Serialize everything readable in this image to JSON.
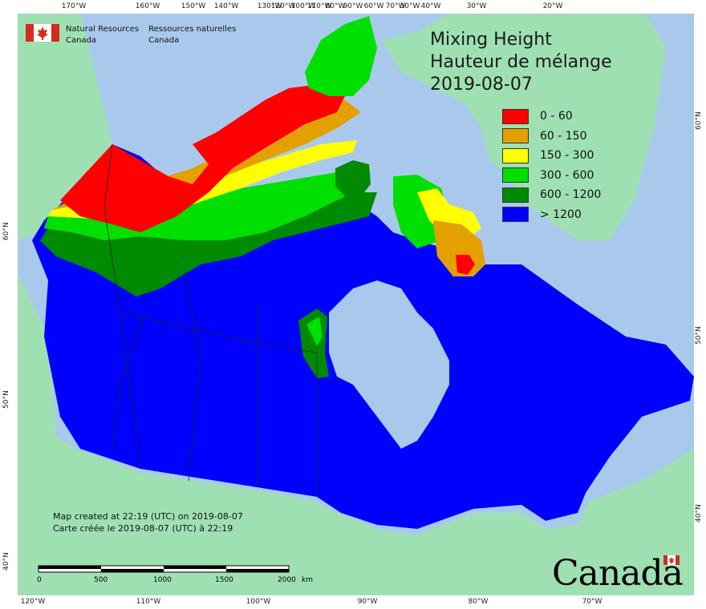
{
  "title": {
    "line1": "Mixing Height",
    "line2": "Hauteur de mélange",
    "date": "2019-08-07"
  },
  "legend": [
    {
      "label": "0 - 60",
      "color": "#ff0000"
    },
    {
      "label": "60 - 150",
      "color": "#e3a000"
    },
    {
      "label": "150 - 300",
      "color": "#ffff00"
    },
    {
      "label": "300 - 600",
      "color": "#00e000"
    },
    {
      "label": "600 - 1200",
      "color": "#008a00"
    },
    {
      "label": "> 1200",
      "color": "#0000ff"
    }
  ],
  "agency": {
    "english_line1": "Natural Resources",
    "english_line2": "Canada",
    "french_line1": "Ressources naturelles",
    "french_line2": "Canada"
  },
  "created": {
    "english": "Map created at 22:19 (UTC) on 2019-08-07",
    "french": "Carte créée le 2019-08-07 (UTC) à 22:19"
  },
  "scale": {
    "labels": [
      "0",
      "500",
      "1000",
      "1500",
      "2000"
    ],
    "unit": "km"
  },
  "wordmark": "Canada",
  "graticule": {
    "top": [
      "170°W",
      "160°W",
      "150°W",
      "140°W",
      "130°W",
      "120°W",
      "100°W",
      "110°W",
      "80°W",
      "90°W",
      "60°W",
      "70°W",
      "50°W",
      "40°W",
      "30°W",
      "20°W"
    ],
    "bottom": [
      "120°W",
      "110°W",
      "100°W",
      "90°W",
      "80°W",
      "70°W"
    ],
    "left": [
      "60°N",
      "50°N",
      "40°N"
    ],
    "right": [
      "60°N",
      "50°N",
      "40°N"
    ]
  },
  "colors": {
    "ocean": "#a9c9ec",
    "foreign_land": "#9ee0b2",
    "bay": "#a9c9ec"
  }
}
